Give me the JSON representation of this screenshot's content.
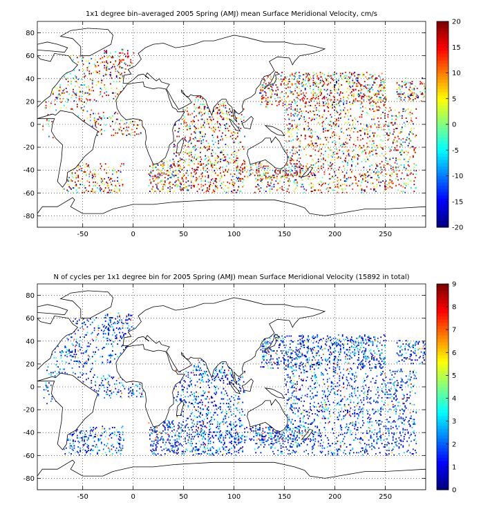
{
  "chart_data": [
    {
      "type": "heatmap",
      "title": "1x1 degree bin–averaged 2005 Spring (AMJ) mean Surface Meridional Velocity, cm/s",
      "xlabel": "",
      "ylabel": "",
      "xlim": [
        -95,
        290
      ],
      "ylim": [
        -90,
        90
      ],
      "xticks": [
        -50,
        0,
        50,
        100,
        150,
        200,
        250
      ],
      "yticks": [
        80,
        60,
        40,
        20,
        0,
        -20,
        -40,
        -60,
        -80
      ],
      "grid": true,
      "colorbar": {
        "min": -20,
        "max": 20,
        "ticks": [
          20,
          15,
          10,
          5,
          0,
          -5,
          -10,
          -15,
          -20
        ],
        "colormap": "jet"
      },
      "coastline": true
    },
    {
      "type": "heatmap",
      "title": "N of cycles per 1x1 degree bin for 2005 Spring (AMJ) mean Surface Meridional Velocity (15892 in total)",
      "xlabel": "",
      "ylabel": "",
      "xlim": [
        -95,
        290
      ],
      "ylim": [
        -90,
        90
      ],
      "xticks": [
        -50,
        0,
        50,
        100,
        150,
        200,
        250
      ],
      "yticks": [
        80,
        60,
        40,
        20,
        0,
        -20,
        -40,
        -60,
        -80
      ],
      "grid": true,
      "colorbar": {
        "min": 0,
        "max": 9,
        "ticks": [
          9,
          8,
          7,
          6,
          5,
          4,
          3,
          2,
          1,
          0
        ],
        "colormap": "jet"
      },
      "coastline": true
    }
  ]
}
